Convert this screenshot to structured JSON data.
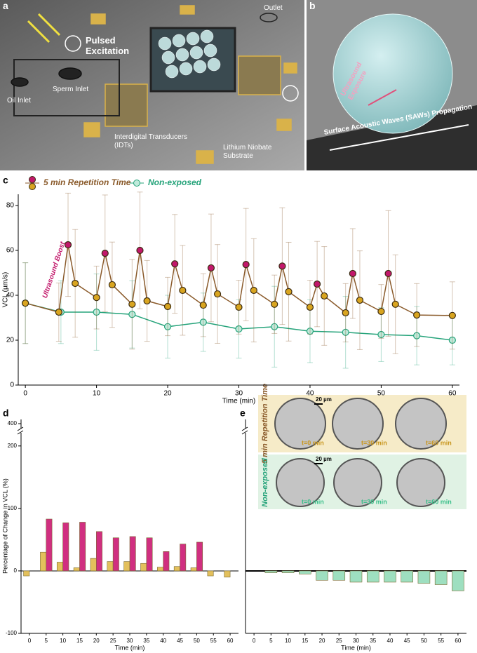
{
  "panel_a": {
    "label": "a",
    "pulsed": "Pulsed Excitation",
    "outlet": "Outlet",
    "sperm_inlet": "Sperm Inlet",
    "oil_inlet": "Oil Inlet",
    "idts": "Interdigital Transducers (IDTs)",
    "substrate": "Lithium Niobate Substrate"
  },
  "panel_b": {
    "label": "b",
    "exposure": "Ultrasound Exposure",
    "saw": "Surface Acoustic Waves (SAWs) Propagation"
  },
  "panel_e_images": {
    "scale_bar": "20 µm",
    "rows": [
      {
        "label": "5 min Repetition Time",
        "times": [
          "t=0 min",
          "t=30 min",
          "t=60 min"
        ]
      },
      {
        "label": "Non-exposed",
        "times": [
          "t=0 min",
          "t=30 min",
          "t=60 min"
        ]
      }
    ]
  },
  "chart_data": [
    {
      "type": "line",
      "panel_label": "c",
      "x_label": "Time (min)",
      "y_label": "VCL (µm/s)",
      "annotation": "Ultrasound Boost",
      "legend": "top-left",
      "xlim": [
        -1,
        61
      ],
      "ylim": [
        0,
        85
      ],
      "xticks": [
        0,
        10,
        20,
        30,
        40,
        50,
        60
      ],
      "yticks": [
        0,
        20,
        40,
        60,
        80
      ],
      "series": [
        {
          "name": "5 min Repetition Time",
          "color": "#8a5a2a",
          "marker_colors": [
            "#d9a520",
            "#d9a520",
            "#c2186b",
            "#d9a520",
            "#d9a520",
            "#c2186b",
            "#d9a520",
            "#d9a520",
            "#c2186b",
            "#d9a520",
            "#d9a520",
            "#c2186b",
            "#d9a520",
            "#d9a520",
            "#c2186b",
            "#d9a520",
            "#d9a520",
            "#c2186b",
            "#d9a520",
            "#d9a520",
            "#c2186b",
            "#d9a520",
            "#d9a520",
            "#c2186b",
            "#d9a520",
            "#d9a520",
            "#c2186b",
            "#d9a520",
            "#d9a520",
            "#c2186b",
            "#d9a520",
            "#d9a520",
            "#d9a520"
          ],
          "x": [
            0,
            4.7,
            6,
            7,
            10,
            11.2,
            12.2,
            15,
            16.1,
            17.1,
            20,
            21,
            22.1,
            25,
            26.1,
            27,
            30,
            31,
            32.1,
            35,
            36.1,
            37,
            40,
            41,
            42,
            45,
            46,
            47,
            50,
            51,
            52,
            55,
            60
          ],
          "values": [
            36.5,
            32.5,
            62.5,
            45.3,
            39,
            58.7,
            44.7,
            36,
            60,
            37.5,
            35,
            54,
            42.2,
            35.6,
            52.2,
            40.6,
            34.7,
            53.7,
            42.2,
            36,
            53,
            41.6,
            34.7,
            45,
            39.7,
            32.2,
            49.7,
            37.8,
            32.8,
            49.7,
            36,
            31.2,
            31
          ],
          "errors": [
            18,
            13,
            23,
            24,
            14,
            26,
            19,
            20,
            26,
            18,
            13,
            22,
            20,
            14,
            24,
            22,
            12,
            25,
            23,
            13,
            26,
            22,
            12,
            19,
            22,
            13,
            20,
            22,
            12,
            28,
            22,
            14,
            15
          ]
        },
        {
          "name": "Non-exposed",
          "color": "#25a37a",
          "x": [
            0,
            5,
            10,
            15,
            20,
            25,
            30,
            35,
            40,
            45,
            50,
            55,
            60
          ],
          "values": [
            36.5,
            32.5,
            32.5,
            31.5,
            26,
            28,
            25,
            26,
            24,
            23.5,
            22.5,
            22,
            20
          ],
          "errors": [
            18,
            14,
            17,
            15,
            14,
            13,
            13,
            18,
            14,
            16,
            12,
            13,
            11
          ]
        }
      ]
    },
    {
      "type": "bar",
      "panel_label": "d",
      "x_label": "Time (min)",
      "y_label": "Percentage of Change in VCL (%)",
      "ylim": [
        -100,
        420
      ],
      "y_break": [
        220,
        380
      ],
      "yticks": [
        -100,
        0,
        100,
        200,
        400
      ],
      "categories": [
        "0",
        "5",
        "10",
        "15",
        "20",
        "25",
        "30",
        "35",
        "40",
        "45",
        "50",
        "55",
        "60"
      ],
      "series": [
        {
          "color": "#e3c05c",
          "values": [
            -8,
            30,
            14,
            5,
            20,
            15,
            15,
            12,
            6,
            7,
            5,
            -8,
            -10
          ]
        },
        {
          "color": "#d02f80",
          "values": [
            null,
            83,
            77,
            78,
            63,
            53,
            55,
            53,
            31,
            43,
            46,
            null,
            null
          ]
        }
      ]
    },
    {
      "type": "bar",
      "panel_label": "e",
      "x_label": "Time (min)",
      "ylim": [
        -100,
        420
      ],
      "y_break": [
        220,
        380
      ],
      "categories": [
        "0",
        "5",
        "10",
        "15",
        "20",
        "25",
        "30",
        "35",
        "40",
        "45",
        "50",
        "55",
        "60"
      ],
      "series": [
        {
          "color": "#9edfc0",
          "values": [
            null,
            -3,
            -3,
            -5,
            -15,
            -15,
            -18,
            -18,
            -18,
            -18,
            -20,
            -22,
            -32
          ]
        }
      ]
    }
  ]
}
